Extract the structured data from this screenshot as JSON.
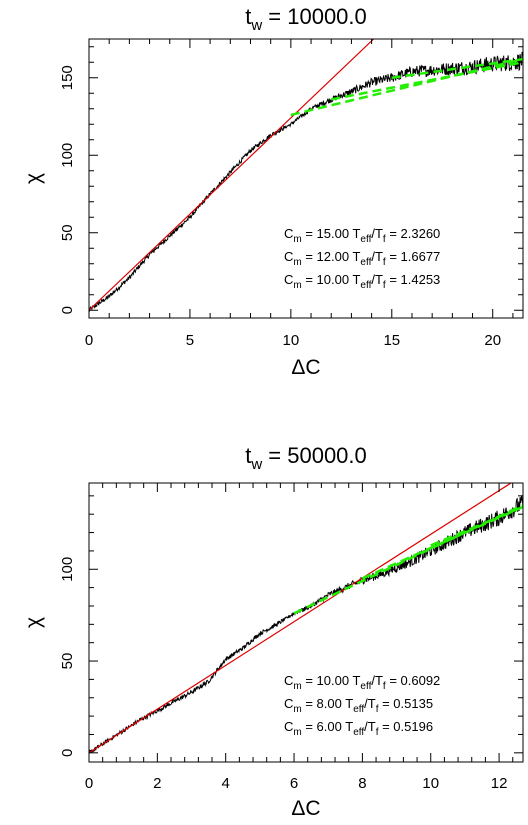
{
  "chart_data": [
    {
      "type": "line",
      "title": {
        "main": "t",
        "sub": "w",
        "rest": " = 10000.0"
      },
      "xlabel": "ΔC",
      "ylabel": "χ",
      "xlim": [
        0,
        21.5
      ],
      "ylim": [
        -5,
        175
      ],
      "xticks": [
        0,
        5,
        10,
        15,
        20
      ],
      "yticks": [
        0,
        50,
        100,
        150
      ],
      "series": [
        {
          "style": "black-noisy",
          "x": [
            0,
            1,
            2,
            3,
            4,
            5,
            6,
            7,
            8,
            9,
            10,
            10.5,
            11,
            12,
            13,
            14,
            15,
            16,
            17,
            18,
            19,
            20,
            21,
            21.5
          ],
          "y": [
            0,
            9,
            21,
            36,
            48,
            60,
            75,
            89,
            103,
            113,
            120,
            125,
            130,
            136,
            141,
            147,
            150,
            154,
            155,
            156,
            157,
            159,
            160,
            161
          ]
        },
        {
          "style": "red-line",
          "x": [
            0,
            14.1
          ],
          "y": [
            0,
            175
          ]
        },
        {
          "style": "green-dashed",
          "x": [
            10,
            21.5
          ],
          "y": [
            126,
            162
          ]
        },
        {
          "style": "green-dashed",
          "x": [
            12,
            21.5
          ],
          "y": [
            136,
            160
          ]
        },
        {
          "style": "green-dashed",
          "x": [
            15,
            21.5
          ],
          "y": [
            150,
            162
          ]
        }
      ],
      "annotations": [
        {
          "prefix": "C",
          "prefix_sub": "m",
          "value": " = 15.00 ",
          "mid": "T",
          "mid_sub": "eff",
          "slash": "/T",
          "slash_sub": "f",
          "result": " =  2.3260"
        },
        {
          "prefix": "C",
          "prefix_sub": "m",
          "value": " = 12.00 ",
          "mid": "T",
          "mid_sub": "eff",
          "slash": "/T",
          "slash_sub": "f",
          "result": " =  1.6677"
        },
        {
          "prefix": "C",
          "prefix_sub": "m",
          "value": " = 10.00 ",
          "mid": "T",
          "mid_sub": "eff",
          "slash": "/T",
          "slash_sub": "f",
          "result": " =  1.4253"
        }
      ]
    },
    {
      "type": "line",
      "title": {
        "main": "t",
        "sub": "w",
        "rest": " = 50000.0"
      },
      "xlabel": "ΔC",
      "ylabel": "χ",
      "xlim": [
        0,
        12.7
      ],
      "ylim": [
        -5,
        147
      ],
      "xticks": [
        0,
        2,
        4,
        6,
        8,
        10,
        12
      ],
      "yticks": [
        0,
        50,
        100
      ],
      "series": [
        {
          "style": "black-noisy",
          "x": [
            0,
            0.5,
            1,
            1.5,
            2,
            2.5,
            3,
            3.5,
            4,
            4.5,
            5,
            5.5,
            6,
            6.5,
            7,
            7.5,
            8,
            8.5,
            9,
            9.5,
            10,
            10.5,
            11,
            11.5,
            12,
            12.7
          ],
          "y": [
            0,
            6,
            12,
            18,
            23,
            28,
            33,
            39,
            51,
            57,
            65,
            70,
            76,
            80,
            86,
            90,
            94,
            97,
            101,
            105,
            110,
            115,
            120,
            124,
            128,
            136
          ]
        },
        {
          "style": "red-line",
          "x": [
            0,
            12.6
          ],
          "y": [
            0,
            150
          ]
        },
        {
          "style": "green-dashed",
          "x": [
            6,
            12.7
          ],
          "y": [
            76,
            135
          ]
        },
        {
          "style": "green-dashed",
          "x": [
            8,
            12.7
          ],
          "y": [
            95,
            134
          ]
        },
        {
          "style": "green-dashed",
          "x": [
            10,
            12.7
          ],
          "y": [
            113,
            134
          ]
        }
      ],
      "annotations": [
        {
          "prefix": "C",
          "prefix_sub": "m",
          "value": " = 10.00 ",
          "mid": "T",
          "mid_sub": "eff",
          "slash": "/T",
          "slash_sub": "f",
          "result": " =  0.6092"
        },
        {
          "prefix": "C",
          "prefix_sub": "m",
          "value": " =  8.00 ",
          "mid": "T",
          "mid_sub": "eff",
          "slash": "/T",
          "slash_sub": "f",
          "result": " =  0.5135"
        },
        {
          "prefix": "C",
          "prefix_sub": "m",
          "value": " =  6.00 ",
          "mid": "T",
          "mid_sub": "eff",
          "slash": "/T",
          "slash_sub": "f",
          "result": " =  0.5196"
        }
      ]
    }
  ],
  "colors": {
    "data": "#000000",
    "fit": "#dd0000",
    "dashed": "#22ee00",
    "frame": "#000000"
  }
}
